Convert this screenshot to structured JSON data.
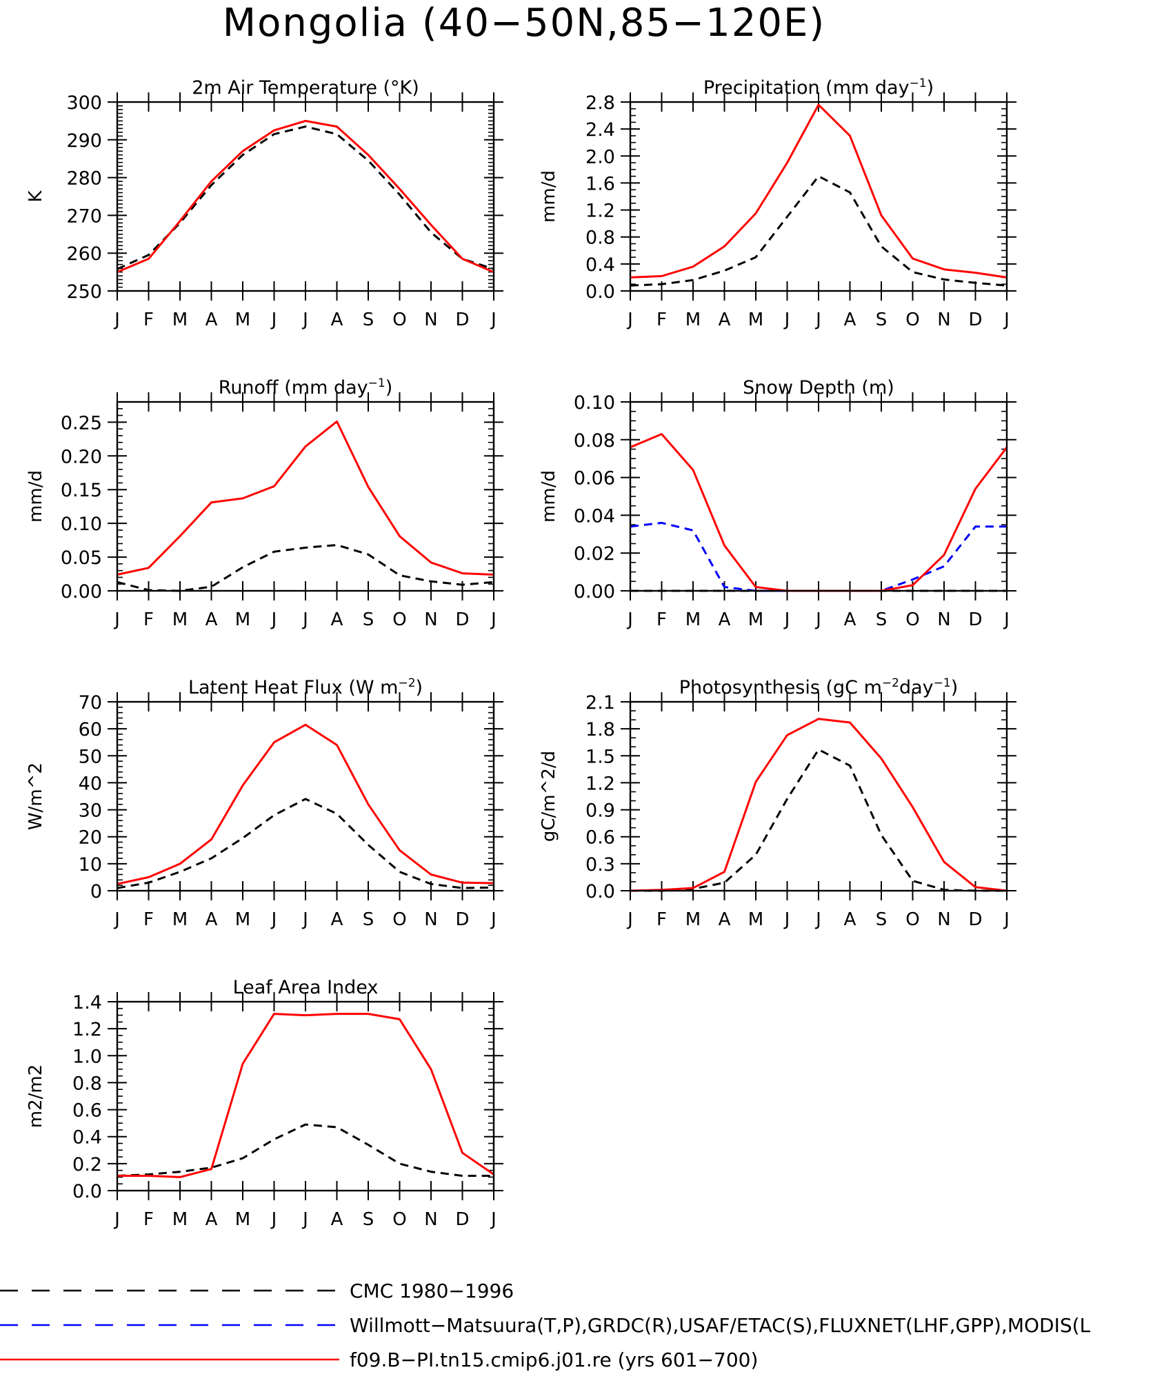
{
  "figure": {
    "title": "Mongolia (40−50N,85−120E)"
  },
  "legend": {
    "position": "bottom-left",
    "entries": [
      {
        "label": "CMC 1980−1996",
        "color": "#000000",
        "style": "dashed-long"
      },
      {
        "label": "Willmott−Matsuura(T,P),GRDC(R),USAF/ETAC(S),FLUXNET(LHF,GPP),MODIS(L",
        "color": "#0000ff",
        "style": "dashed-long"
      },
      {
        "label": "f09.B−PI.tn15.cmip6.j01.re (yrs 601−700)",
        "color": "#ff0000",
        "style": "solid"
      }
    ]
  },
  "colors": {
    "model": "#ff0000",
    "obs_black": "#000000",
    "obs_blue": "#0000ff"
  },
  "chart_data": [
    {
      "type": "line",
      "title": "2m Air Temperature (°K)",
      "ylabel": "K",
      "x": [
        "J",
        "F",
        "M",
        "A",
        "M",
        "J",
        "J",
        "A",
        "S",
        "O",
        "N",
        "D",
        "J"
      ],
      "ylim": [
        250,
        300
      ],
      "yticks": [
        "250",
        "260",
        "270",
        "280",
        "290",
        "300"
      ],
      "yminor": 1,
      "series": [
        {
          "color": "#ff0000",
          "dash": "solid",
          "values": [
            255,
            258.5,
            268.5,
            279,
            287,
            292.5,
            295,
            293.5,
            286,
            277,
            267.5,
            258.5,
            255
          ]
        },
        {
          "color": "#000000",
          "dash": "dashed",
          "values": [
            255.8,
            259.5,
            268,
            278,
            286,
            291.5,
            293.5,
            291.5,
            284.5,
            275.5,
            265.5,
            258.5,
            255.8
          ]
        }
      ]
    },
    {
      "type": "line",
      "title": "Precipitation (mm day",
      "title_sup": "−1",
      "title_end": ")",
      "ylabel": "mm/d",
      "x": [
        "J",
        "F",
        "M",
        "A",
        "M",
        "J",
        "J",
        "A",
        "S",
        "O",
        "N",
        "D",
        "J"
      ],
      "ylim": [
        0,
        2.8
      ],
      "yticks": [
        "0.0",
        "0.4",
        "0.8",
        "1.2",
        "1.6",
        "2.0",
        "2.4",
        "2.8"
      ],
      "yminor": 0.1,
      "series": [
        {
          "color": "#ff0000",
          "dash": "solid",
          "values": [
            0.2,
            0.22,
            0.36,
            0.66,
            1.15,
            1.9,
            2.76,
            2.3,
            1.12,
            0.48,
            0.32,
            0.27,
            0.2
          ]
        },
        {
          "color": "#000000",
          "dash": "dashed",
          "values": [
            0.08,
            0.1,
            0.16,
            0.3,
            0.5,
            1.1,
            1.7,
            1.46,
            0.66,
            0.28,
            0.17,
            0.12,
            0.08
          ]
        }
      ]
    },
    {
      "type": "line",
      "title": "Runoff (mm day",
      "title_sup": "−1",
      "title_end": ")",
      "ylabel": "mm/d",
      "x": [
        "J",
        "F",
        "M",
        "A",
        "M",
        "J",
        "J",
        "A",
        "S",
        "O",
        "N",
        "D",
        "J"
      ],
      "ylim": [
        0,
        0.28
      ],
      "yticks": [
        "0.00",
        "0.05",
        "0.10",
        "0.15",
        "0.20",
        "0.25"
      ],
      "yticks_at": [
        0,
        0.05,
        0.1,
        0.15,
        0.2,
        0.25
      ],
      "yminor": 0.01,
      "series": [
        {
          "color": "#ff0000",
          "dash": "solid",
          "values": [
            0.024,
            0.034,
            0.081,
            0.131,
            0.137,
            0.155,
            0.214,
            0.251,
            0.154,
            0.081,
            0.042,
            0.026,
            0.024
          ]
        },
        {
          "color": "#000000",
          "dash": "dashed",
          "values": [
            0.013,
            0.001,
            0.0,
            0.006,
            0.035,
            0.058,
            0.064,
            0.068,
            0.054,
            0.023,
            0.014,
            0.009,
            0.013
          ]
        }
      ]
    },
    {
      "type": "line",
      "title": "Snow Depth (m)",
      "ylabel": "mm/d",
      "x": [
        "J",
        "F",
        "M",
        "A",
        "M",
        "J",
        "J",
        "A",
        "S",
        "O",
        "N",
        "D",
        "J"
      ],
      "ylim": [
        0,
        0.1
      ],
      "yticks": [
        "0.00",
        "0.02",
        "0.04",
        "0.06",
        "0.08",
        "0.10"
      ],
      "yminor": 0.005,
      "series": [
        {
          "color": "#ff0000",
          "dash": "solid",
          "values": [
            0.076,
            0.083,
            0.064,
            0.024,
            0.002,
            0.0,
            0.0,
            0.0,
            0.0,
            0.003,
            0.019,
            0.054,
            0.076
          ]
        },
        {
          "color": "#0000ff",
          "dash": "dashed",
          "values": [
            0.034,
            0.036,
            0.032,
            0.002,
            0.0,
            0.0,
            0.0,
            0.0,
            0.0,
            0.006,
            0.013,
            0.034,
            0.034
          ]
        },
        {
          "color": "#000000",
          "dash": "dashed",
          "values": [
            0,
            0,
            0,
            0,
            0,
            0,
            0,
            0,
            0,
            0,
            0,
            0,
            0
          ]
        }
      ]
    },
    {
      "type": "line",
      "title": "Latent Heat Flux (W m",
      "title_sup": "−2",
      "title_end": ")",
      "ylabel": "W/m^2",
      "x": [
        "J",
        "F",
        "M",
        "A",
        "M",
        "J",
        "J",
        "A",
        "S",
        "O",
        "N",
        "D",
        "J"
      ],
      "ylim": [
        0,
        70
      ],
      "yticks": [
        "0",
        "10",
        "20",
        "30",
        "40",
        "50",
        "60",
        "70"
      ],
      "yminor": 2,
      "series": [
        {
          "color": "#ff0000",
          "dash": "solid",
          "values": [
            2.5,
            5,
            10,
            19,
            39,
            55,
            61.5,
            54,
            32,
            15,
            6,
            3,
            2.8
          ]
        },
        {
          "color": "#000000",
          "dash": "dashed",
          "values": [
            1,
            3,
            7,
            12,
            19.5,
            28,
            34,
            28.5,
            17,
            7,
            2.5,
            1,
            1.2
          ]
        }
      ]
    },
    {
      "type": "line",
      "title": "Photosynthesis (gC m",
      "title_sup": "−2",
      "title_mid": "day",
      "title_sup2": "−1",
      "title_end": ")",
      "ylabel": "gC/m^2/d",
      "x": [
        "J",
        "F",
        "M",
        "A",
        "M",
        "J",
        "J",
        "A",
        "S",
        "O",
        "N",
        "D",
        "J"
      ],
      "ylim": [
        0,
        2.1
      ],
      "yticks": [
        "0.0",
        "0.3",
        "0.6",
        "0.9",
        "1.2",
        "1.5",
        "1.8",
        "2.1"
      ],
      "yminor": 0.1,
      "series": [
        {
          "color": "#ff0000",
          "dash": "solid",
          "values": [
            0,
            0.01,
            0.03,
            0.21,
            1.21,
            1.73,
            1.91,
            1.87,
            1.47,
            0.93,
            0.32,
            0.04,
            0
          ]
        },
        {
          "color": "#000000",
          "dash": "dashed",
          "values": [
            0,
            0,
            0.02,
            0.09,
            0.4,
            1.02,
            1.57,
            1.39,
            0.62,
            0.11,
            0.01,
            0,
            0
          ]
        }
      ]
    },
    {
      "type": "line",
      "title": "Leaf Area Index",
      "ylabel": "m2/m2",
      "x": [
        "J",
        "F",
        "M",
        "A",
        "M",
        "J",
        "J",
        "A",
        "S",
        "O",
        "N",
        "D",
        "J"
      ],
      "ylim": [
        0,
        1.4
      ],
      "yticks": [
        "0.0",
        "0.2",
        "0.4",
        "0.6",
        "0.8",
        "1.0",
        "1.2",
        "1.4"
      ],
      "yminor": 0.05,
      "series": [
        {
          "color": "#ff0000",
          "dash": "solid",
          "values": [
            0.11,
            0.11,
            0.1,
            0.16,
            0.94,
            1.31,
            1.3,
            1.31,
            1.31,
            1.27,
            0.9,
            0.28,
            0.12
          ]
        },
        {
          "color": "#000000",
          "dash": "dashed",
          "values": [
            0.11,
            0.12,
            0.14,
            0.17,
            0.24,
            0.38,
            0.49,
            0.47,
            0.34,
            0.2,
            0.14,
            0.11,
            0.11
          ]
        }
      ]
    }
  ]
}
